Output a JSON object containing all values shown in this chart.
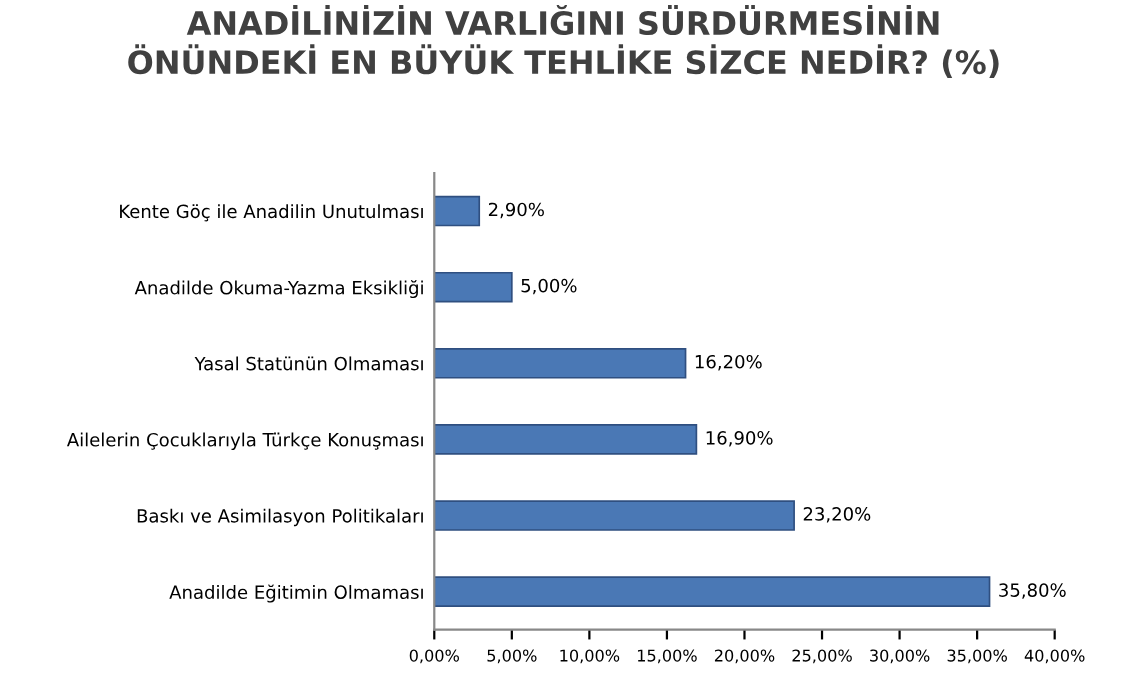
{
  "chart_data": {
    "type": "bar",
    "orientation": "horizontal",
    "title": "ANADİLİNİZİN VARLIĞINI SÜRDÜRMESİNİN\nÖNÜNDEKİ EN BÜYÜK TEHLİKE SİZCE NEDİR? (%)",
    "categories": [
      "Kente Göç ile Anadilin Unutulması",
      "Anadilde Okuma-Yazma Eksikliği",
      "Yasal Statünün Olmaması",
      "Ailelerin Çocuklarıyla Türkçe Konuşması",
      "Baskı ve Asimilasyon Politikaları",
      "Anadilde Eğitimin Olmaması"
    ],
    "values": [
      2.9,
      5.0,
      16.2,
      16.9,
      23.2,
      35.8
    ],
    "value_labels": [
      "2,90%",
      "5,00%",
      "16,20%",
      "16,90%",
      "23,20%",
      "35,80%"
    ],
    "color": "#4a78b5",
    "xlim": [
      0,
      40
    ],
    "xticks": [
      {
        "value": 0,
        "label": "0,00%"
      },
      {
        "value": 5,
        "label": "5,00%"
      },
      {
        "value": 10,
        "label": "10,00%"
      },
      {
        "value": 15,
        "label": "15,00%"
      },
      {
        "value": 20,
        "label": "20,00%"
      },
      {
        "value": 25,
        "label": "25,00%"
      },
      {
        "value": 30,
        "label": "30,00%"
      },
      {
        "value": 35,
        "label": "35,00%"
      },
      {
        "value": 40,
        "label": "40,00%"
      }
    ],
    "grid": false,
    "legend": false
  }
}
